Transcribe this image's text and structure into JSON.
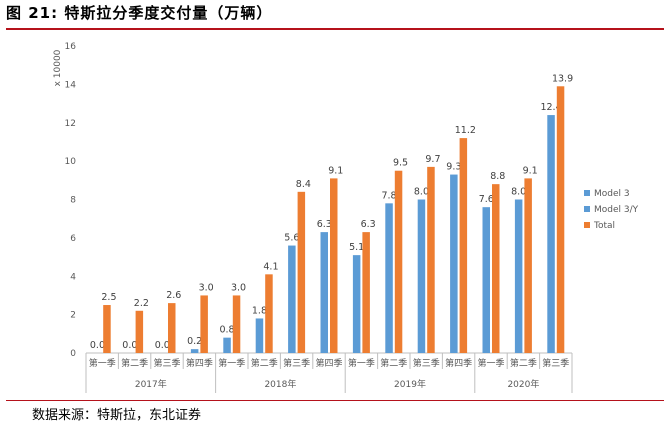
{
  "figure": {
    "label": "图 21:",
    "title": "特斯拉分季度交付量（万辆）",
    "source": "数据来源：特斯拉，东北证券"
  },
  "colors": {
    "blue": "#5b9bd5",
    "orange": "#ed7d31",
    "axis": "#bfbfbf",
    "text": "#595959"
  },
  "chart_data": {
    "type": "bar",
    "title": "特斯拉分季度交付量（万辆）",
    "ylabel": "x 10000",
    "ylim": [
      0,
      16
    ],
    "yticks": [
      0,
      2,
      4,
      6,
      8,
      10,
      12,
      14,
      16
    ],
    "legend_position": "right",
    "groups": [
      {
        "name": "2017年",
        "quarters": [
          "第一季",
          "第二季",
          "第三季",
          "第四季"
        ]
      },
      {
        "name": "2018年",
        "quarters": [
          "第一季",
          "第二季",
          "第三季",
          "第四季"
        ]
      },
      {
        "name": "2019年",
        "quarters": [
          "第一季",
          "第二季",
          "第三季",
          "第四季"
        ]
      },
      {
        "name": "2020年",
        "quarters": [
          "第一季",
          "第二季",
          "第三季"
        ]
      }
    ],
    "series": [
      {
        "name": "Model 3",
        "color": "#5b9bd5",
        "values": [
          0.0,
          0.0,
          0.0,
          0.2,
          0.8,
          1.8,
          5.6,
          6.3,
          null,
          null,
          null,
          null,
          null,
          null,
          null
        ],
        "labels": [
          "0.0",
          "0.0",
          "0.0",
          "0.2",
          "0.8",
          "1.8",
          "5.6",
          "6.3",
          null,
          null,
          null,
          null,
          null,
          null,
          null
        ]
      },
      {
        "name": "Model 3/Y",
        "color": "#5b9bd5",
        "values": [
          null,
          null,
          null,
          null,
          null,
          null,
          null,
          null,
          5.1,
          7.8,
          8.0,
          9.3,
          7.6,
          8.0,
          12.4
        ],
        "labels": [
          null,
          null,
          null,
          null,
          null,
          null,
          null,
          null,
          "5.1",
          "7.8",
          "8.0",
          "9.3",
          "7.6",
          "8.0",
          "12.4"
        ]
      },
      {
        "name": "Total",
        "color": "#ed7d31",
        "values": [
          2.5,
          2.2,
          2.6,
          3.0,
          3.0,
          4.1,
          8.4,
          9.1,
          6.3,
          9.5,
          9.7,
          11.2,
          8.8,
          9.1,
          13.9
        ],
        "labels": [
          "2.5",
          "2.2",
          "2.6",
          "3.0",
          "3.0",
          "4.1",
          "8.4",
          "9.1",
          "6.3",
          "9.5",
          "9.7",
          "11.2",
          "8.8",
          "9.1",
          "13.9"
        ]
      }
    ],
    "legend": [
      "Model 3",
      "Model 3/Y",
      "Total"
    ]
  }
}
